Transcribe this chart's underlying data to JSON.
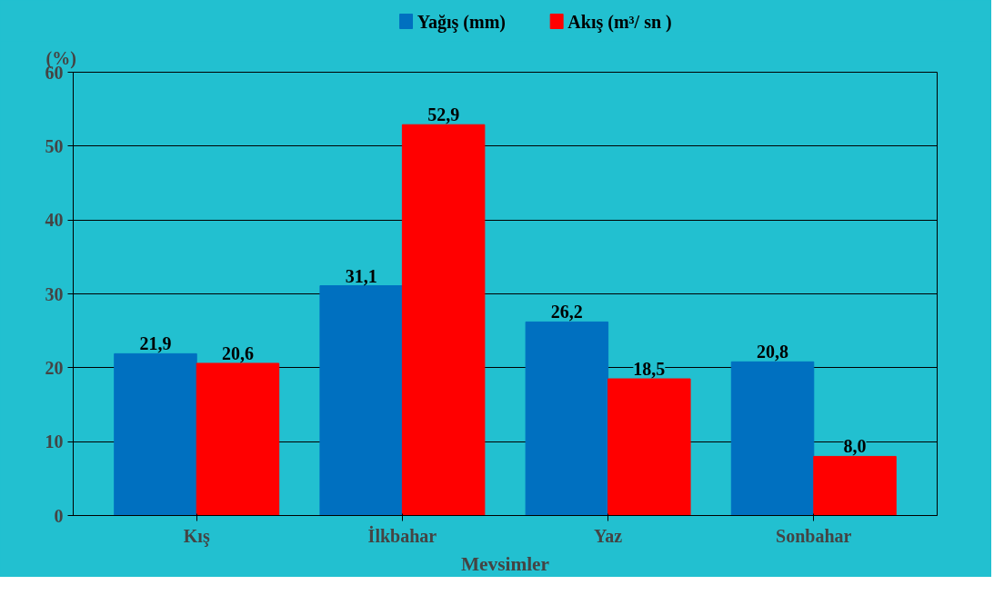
{
  "chart_data": {
    "type": "bar",
    "xlabel": "Mevsimler",
    "ylabel": "(%)",
    "categories": [
      "Kış",
      "İlkbahar",
      "Yaz",
      "Sonbahar"
    ],
    "series": [
      {
        "name": "Yağış (mm)",
        "color": "#0070c0",
        "values": [
          21.9,
          31.1,
          26.2,
          20.8
        ]
      },
      {
        "name": "Akış  (m³/ sn )",
        "color": "#ff0000",
        "values": [
          20.6,
          52.9,
          18.5,
          8.0
        ]
      }
    ],
    "value_labels": [
      [
        "21,9",
        "31,1",
        "26,2",
        "20,8"
      ],
      [
        "20,6",
        "52,9",
        "18,5",
        "8,0"
      ]
    ],
    "ylim": [
      0,
      60
    ],
    "yticks": [
      0,
      10,
      20,
      30,
      40,
      50,
      60
    ],
    "grid": "y",
    "legend": "top"
  }
}
